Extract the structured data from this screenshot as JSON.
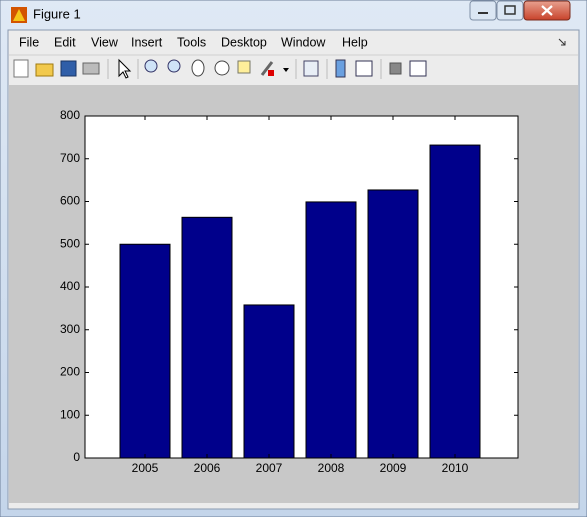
{
  "window": {
    "title": "Figure 1",
    "menu": [
      "File",
      "Edit",
      "View",
      "Insert",
      "Tools",
      "Desktop",
      "Window",
      "Help"
    ]
  },
  "chart_data": {
    "type": "bar",
    "categories": [
      "2005",
      "2006",
      "2007",
      "2008",
      "2009",
      "2010"
    ],
    "values": [
      500,
      563,
      358,
      599,
      627,
      732
    ],
    "color": "#00008b",
    "ylim": [
      0,
      800
    ],
    "yticks": [
      0,
      100,
      200,
      300,
      400,
      500,
      600,
      700,
      800
    ],
    "grid": false
  }
}
